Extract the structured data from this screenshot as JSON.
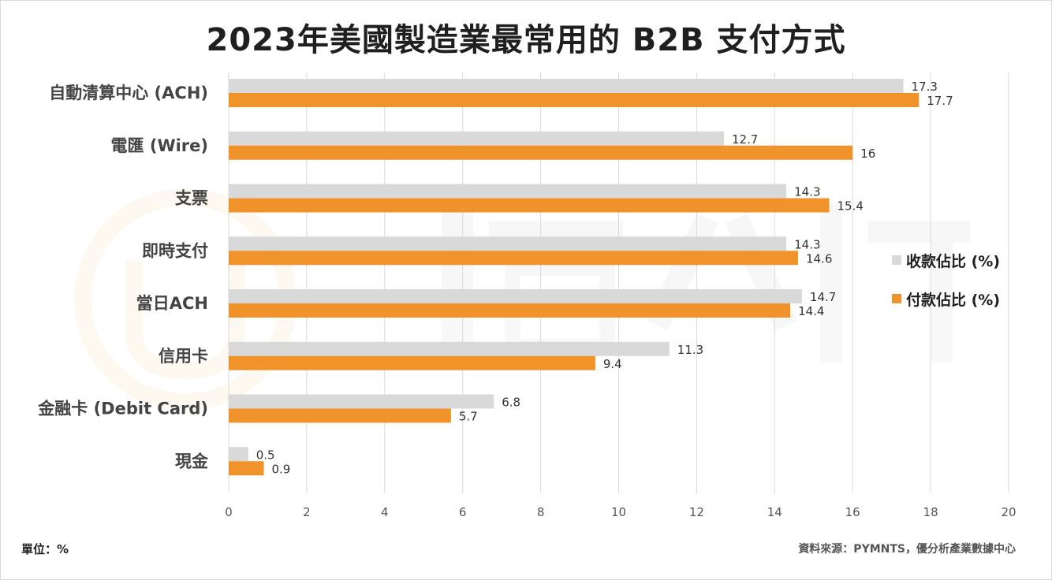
{
  "chart_data": {
    "type": "bar",
    "orientation": "horizontal",
    "title": "2023年美國製造業最常用的 B2B 支付方式",
    "categories": [
      "自動清算中心 (ACH)",
      "電匯 (Wire)",
      "支票",
      "即時支付",
      "當日ACH",
      "信用卡",
      "金融卡 (Debit Card)",
      "現金"
    ],
    "series": [
      {
        "name": "收款佔比 (%)",
        "color": "#d9d9d9",
        "values": [
          17.3,
          12.7,
          14.3,
          14.3,
          14.7,
          11.3,
          6.8,
          0.5
        ],
        "labels": [
          "17.3",
          "12.7",
          "14.3",
          "14.3",
          "14.7",
          "11.3",
          "6.8",
          "0.5"
        ]
      },
      {
        "name": "付款佔比 (%)",
        "color": "#f0932b",
        "values": [
          17.7,
          16,
          15.4,
          14.6,
          14.4,
          9.4,
          5.7,
          0.9
        ],
        "labels": [
          "17.7",
          "16",
          "15.4",
          "14.6",
          "14.4",
          "9.4",
          "5.7",
          "0.9"
        ]
      }
    ],
    "xlim": [
      0,
      20
    ],
    "xticks": [
      "0",
      "2",
      "4",
      "6",
      "8",
      "10",
      "12",
      "14",
      "16",
      "18",
      "20"
    ],
    "grid": true,
    "legend_position": "right"
  },
  "footer": {
    "unit": "單位：%",
    "source": "資料來源：PYMNTS，優分析產業數據中心"
  }
}
